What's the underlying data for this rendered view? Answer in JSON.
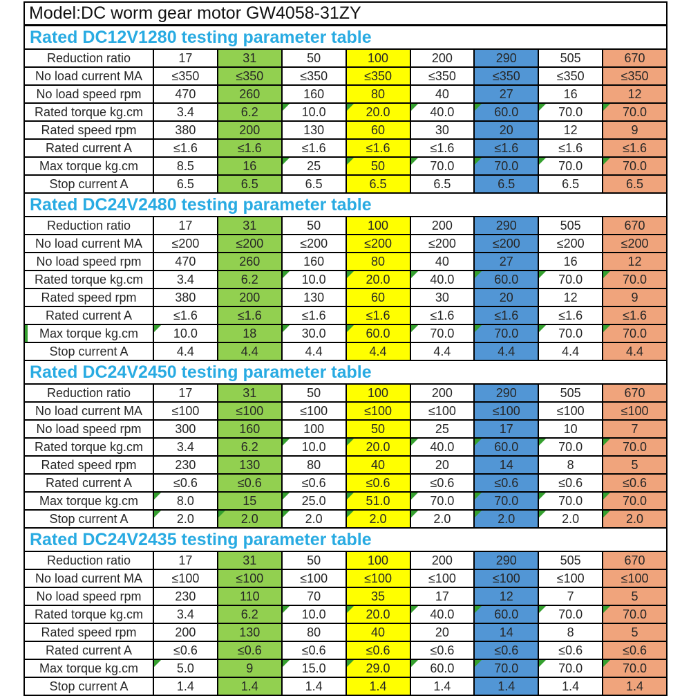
{
  "model_title": "Model:DC worm gear motor GW4058-31ZY",
  "colors": {
    "title_cyan": "#29ABE2",
    "column_green": "#92D050",
    "column_yellow": "#FFFF00",
    "column_blue": "#5296D5",
    "column_salmon": "#F0A47C",
    "marker_green": "#35A02F",
    "border_black": "#000000"
  },
  "column_colors": [
    "white",
    "green",
    "white",
    "yellow",
    "white",
    "blue",
    "white",
    "salmon"
  ],
  "tables": [
    {
      "title": "Rated DC12V1280 testing parameter table",
      "rows": [
        {
          "label": "Reduction ratio",
          "values": [
            "17",
            "31",
            "50",
            "100",
            "200",
            "290",
            "505",
            "670"
          ],
          "markers": []
        },
        {
          "label": "No load current MA",
          "values": [
            "≤350",
            "≤350",
            "≤350",
            "≤350",
            "≤350",
            "≤350",
            "≤350",
            "≤350"
          ],
          "markers": []
        },
        {
          "label": "No load speed rpm",
          "values": [
            "470",
            "260",
            "160",
            "80",
            "40",
            "27",
            "16",
            "12"
          ],
          "markers": []
        },
        {
          "label": "Rated torque kg.cm",
          "values": [
            "3.4",
            "6.2",
            "10.0",
            "20.0",
            "40.0",
            "60.0",
            "70.0",
            "70.0"
          ],
          "markers": [
            2,
            3,
            4,
            5,
            6,
            7
          ]
        },
        {
          "label": "Rated speed rpm",
          "values": [
            "380",
            "200",
            "130",
            "60",
            "30",
            "20",
            "12",
            "9"
          ],
          "markers": []
        },
        {
          "label": "Rated current A",
          "values": [
            "≤1.6",
            "≤1.6",
            "≤1.6",
            "≤1.6",
            "≤1.6",
            "≤1.6",
            "≤1.6",
            "≤1.6"
          ],
          "markers": []
        },
        {
          "label": "Max torque kg.cm",
          "values": [
            "8.5",
            "16",
            "25",
            "50",
            "70.0",
            "70.0",
            "70.0",
            "70.0"
          ],
          "markers": [
            2,
            3,
            4,
            5,
            6,
            7
          ]
        },
        {
          "label": "Stop current A",
          "values": [
            "6.5",
            "6.5",
            "6.5",
            "6.5",
            "6.5",
            "6.5",
            "6.5",
            "6.5"
          ],
          "markers": []
        }
      ]
    },
    {
      "title": "Rated DC24V2480 testing parameter table",
      "rows": [
        {
          "label": "Reduction ratio",
          "values": [
            "17",
            "31",
            "50",
            "100",
            "200",
            "290",
            "505",
            "670"
          ],
          "markers": []
        },
        {
          "label": "No load current MA",
          "values": [
            "≤200",
            "≤200",
            "≤200",
            "≤200",
            "≤200",
            "≤200",
            "≤200",
            "≤200"
          ],
          "markers": []
        },
        {
          "label": "No load speed rpm",
          "values": [
            "470",
            "260",
            "160",
            "80",
            "40",
            "27",
            "16",
            "12"
          ],
          "markers": []
        },
        {
          "label": "Rated torque kg.cm",
          "values": [
            "3.4",
            "6.2",
            "10.0",
            "20.0",
            "40.0",
            "60.0",
            "70.0",
            "70.0"
          ],
          "markers": [
            2,
            3,
            4,
            5,
            6,
            7
          ]
        },
        {
          "label": "Rated speed rpm",
          "values": [
            "380",
            "200",
            "130",
            "60",
            "30",
            "20",
            "12",
            "9"
          ],
          "markers": []
        },
        {
          "label": "Rated current A",
          "values": [
            "≤1.6",
            "≤1.6",
            "≤1.6",
            "≤1.6",
            "≤1.6",
            "≤1.6",
            "≤1.6",
            "≤1.6"
          ],
          "markers": []
        },
        {
          "label": "Max torque kg.cm",
          "values": [
            "10.0",
            "18",
            "30.0",
            "60.0",
            "70.0",
            "70.0",
            "70.0",
            "70.0"
          ],
          "markers": [
            0,
            2,
            3,
            4,
            5,
            6,
            7
          ],
          "label_green_left": true
        },
        {
          "label": "Stop current A",
          "values": [
            "4.4",
            "4.4",
            "4.4",
            "4.4",
            "4.4",
            "4.4",
            "4.4",
            "4.4"
          ],
          "markers": []
        }
      ]
    },
    {
      "title": "Rated DC24V2450 testing parameter table",
      "rows": [
        {
          "label": "Reduction ratio",
          "values": [
            "17",
            "31",
            "50",
            "100",
            "200",
            "290",
            "505",
            "670"
          ],
          "markers": []
        },
        {
          "label": "No load current MA",
          "values": [
            "≤100",
            "≤100",
            "≤100",
            "≤100",
            "≤100",
            "≤100",
            "≤100",
            "≤100"
          ],
          "markers": []
        },
        {
          "label": "No load speed rpm",
          "values": [
            "300",
            "160",
            "100",
            "50",
            "25",
            "17",
            "10",
            "7"
          ],
          "markers": []
        },
        {
          "label": "Rated torque kg.cm",
          "values": [
            "3.4",
            "6.2",
            "10.0",
            "20.0",
            "40.0",
            "60.0",
            "70.0",
            "70.0"
          ],
          "markers": [
            2,
            3,
            4,
            5,
            6,
            7
          ]
        },
        {
          "label": "Rated speed rpm",
          "values": [
            "230",
            "130",
            "80",
            "40",
            "20",
            "14",
            "8",
            "5"
          ],
          "markers": []
        },
        {
          "label": "Rated current A",
          "values": [
            "≤0.6",
            "≤0.6",
            "≤0.6",
            "≤0.6",
            "≤0.6",
            "≤0.6",
            "≤0.6",
            "≤0.6"
          ],
          "markers": []
        },
        {
          "label": "Max torque kg.cm",
          "values": [
            "8.0",
            "15",
            "25.0",
            "51.0",
            "70.0",
            "70.0",
            "70.0",
            "70.0"
          ],
          "markers": [
            0,
            2,
            3,
            4,
            5,
            6,
            7
          ]
        },
        {
          "label": "Stop current A",
          "values": [
            "2.0",
            "2.0",
            "2.0",
            "2.0",
            "2.0",
            "2.0",
            "2.0",
            "2.0"
          ],
          "markers": [
            0,
            1,
            2,
            3,
            4,
            5,
            6,
            7
          ]
        }
      ]
    },
    {
      "title": "Rated DC24V2435 testing parameter table",
      "rows": [
        {
          "label": "Reduction ratio",
          "values": [
            "17",
            "31",
            "50",
            "100",
            "200",
            "290",
            "505",
            "670"
          ],
          "markers": []
        },
        {
          "label": "No load current MA",
          "values": [
            "≤100",
            "≤100",
            "≤100",
            "≤100",
            "≤100",
            "≤100",
            "≤100",
            "≤100"
          ],
          "markers": []
        },
        {
          "label": "No load speed rpm",
          "values": [
            "230",
            "110",
            "70",
            "35",
            "17",
            "12",
            "7",
            "5"
          ],
          "markers": []
        },
        {
          "label": "Rated torque kg.cm",
          "values": [
            "3.4",
            "6.2",
            "10.0",
            "20.0",
            "40.0",
            "60.0",
            "70.0",
            "70.0"
          ],
          "markers": [
            2,
            3,
            4,
            5,
            6,
            7
          ]
        },
        {
          "label": "Rated speed rpm",
          "values": [
            "200",
            "130",
            "80",
            "40",
            "20",
            "14",
            "8",
            "5"
          ],
          "markers": []
        },
        {
          "label": "Rated current A",
          "values": [
            "≤0.6",
            "≤0.6",
            "≤0.6",
            "≤0.6",
            "≤0.6",
            "≤0.6",
            "≤0.6",
            "≤0.6"
          ],
          "markers": []
        },
        {
          "label": "Max torque kg.cm",
          "values": [
            "5.0",
            "9",
            "15.0",
            "29.0",
            "60.0",
            "70.0",
            "70.0",
            "70.0"
          ],
          "markers": [
            0,
            2,
            3,
            4,
            5,
            6,
            7
          ]
        },
        {
          "label": "Stop current A",
          "values": [
            "1.4",
            "1.4",
            "1.4",
            "1.4",
            "1.4",
            "1.4",
            "1.4",
            "1.4"
          ],
          "markers": []
        }
      ]
    }
  ]
}
